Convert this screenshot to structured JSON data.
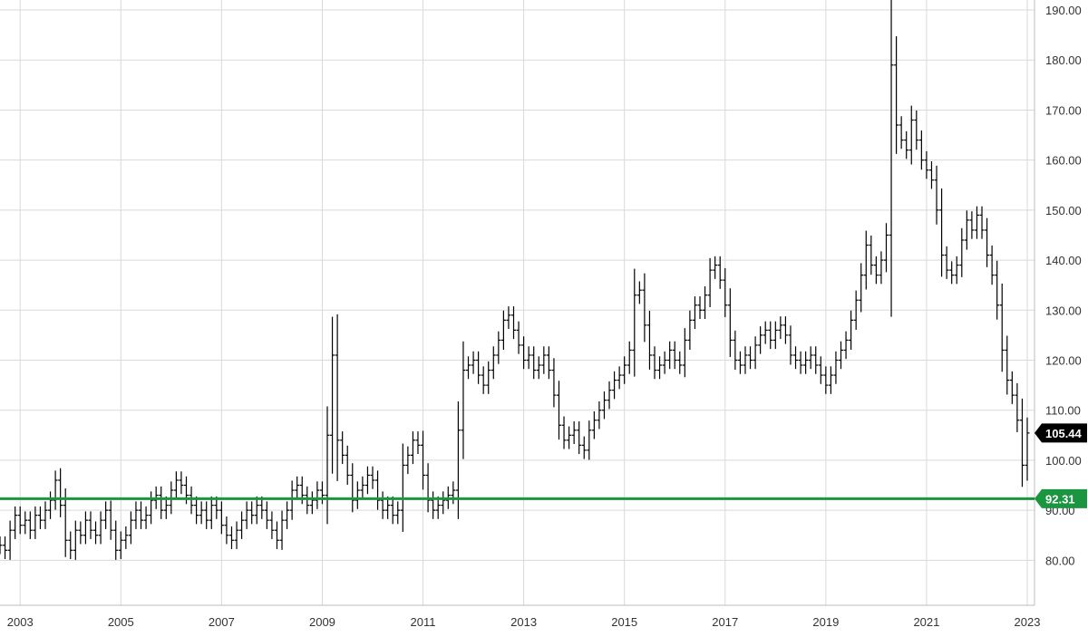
{
  "chart_data": {
    "type": "ohlc",
    "title": "",
    "xlabel": "",
    "ylabel": "",
    "x_ticks": [
      "2003",
      "2005",
      "2007",
      "2009",
      "2011",
      "2013",
      "2015",
      "2017",
      "2019",
      "2021",
      "2023"
    ],
    "y_ticks": [
      "80.00",
      "90.00",
      "100.00",
      "110.00",
      "120.00",
      "130.00",
      "140.00",
      "150.00",
      "160.00",
      "170.00",
      "180.00",
      "190.00"
    ],
    "xlim": [
      2002.6,
      2023.0
    ],
    "ylim": [
      71,
      192
    ],
    "grid": true,
    "legend": "none",
    "bar_color": "#000000",
    "series": [
      {
        "values": [
          [
            2002.6,
            83
          ],
          [
            2002.7,
            82
          ],
          [
            2002.8,
            86
          ],
          [
            2002.9,
            89
          ],
          [
            2003.0,
            87
          ],
          [
            2003.1,
            88
          ],
          [
            2003.2,
            86
          ],
          [
            2003.3,
            89
          ],
          [
            2003.4,
            88
          ],
          [
            2003.5,
            90
          ],
          [
            2003.6,
            92
          ],
          [
            2003.7,
            96
          ],
          [
            2003.8,
            91
          ],
          [
            2003.9,
            84
          ],
          [
            2004.0,
            82
          ],
          [
            2004.1,
            86
          ],
          [
            2004.2,
            85
          ],
          [
            2004.3,
            88
          ],
          [
            2004.4,
            86
          ],
          [
            2004.5,
            85
          ],
          [
            2004.6,
            88
          ],
          [
            2004.7,
            90
          ],
          [
            2004.8,
            86
          ],
          [
            2004.9,
            82
          ],
          [
            2005.0,
            84
          ],
          [
            2005.1,
            85
          ],
          [
            2005.2,
            88
          ],
          [
            2005.3,
            90
          ],
          [
            2005.4,
            88
          ],
          [
            2005.5,
            89
          ],
          [
            2005.6,
            92
          ],
          [
            2005.7,
            93
          ],
          [
            2005.8,
            90
          ],
          [
            2005.9,
            91
          ],
          [
            2006.0,
            94
          ],
          [
            2006.1,
            96
          ],
          [
            2006.2,
            95
          ],
          [
            2006.3,
            93
          ],
          [
            2006.4,
            91
          ],
          [
            2006.5,
            89
          ],
          [
            2006.6,
            90
          ],
          [
            2006.7,
            88
          ],
          [
            2006.8,
            91
          ],
          [
            2006.9,
            90
          ],
          [
            2007.0,
            87
          ],
          [
            2007.1,
            85
          ],
          [
            2007.2,
            84
          ],
          [
            2007.3,
            86
          ],
          [
            2007.4,
            88
          ],
          [
            2007.5,
            90
          ],
          [
            2007.6,
            89
          ],
          [
            2007.7,
            91
          ],
          [
            2007.8,
            90
          ],
          [
            2007.9,
            88
          ],
          [
            2008.0,
            86
          ],
          [
            2008.1,
            84
          ],
          [
            2008.2,
            88
          ],
          [
            2008.3,
            90
          ],
          [
            2008.4,
            94
          ],
          [
            2008.5,
            95
          ],
          [
            2008.6,
            93
          ],
          [
            2008.7,
            91
          ],
          [
            2008.8,
            92
          ],
          [
            2008.9,
            94
          ],
          [
            2009.0,
            93
          ],
          [
            2009.1,
            105
          ],
          [
            2009.2,
            121
          ],
          [
            2009.3,
            104
          ],
          [
            2009.4,
            101
          ],
          [
            2009.5,
            97
          ],
          [
            2009.6,
            92
          ],
          [
            2009.7,
            94
          ],
          [
            2009.8,
            95
          ],
          [
            2009.9,
            97
          ],
          [
            2010.0,
            96
          ],
          [
            2010.1,
            92
          ],
          [
            2010.2,
            90
          ],
          [
            2010.3,
            91
          ],
          [
            2010.4,
            89
          ],
          [
            2010.5,
            90
          ],
          [
            2010.6,
            99
          ],
          [
            2010.7,
            101
          ],
          [
            2010.8,
            104
          ],
          [
            2010.9,
            103
          ],
          [
            2011.0,
            97
          ],
          [
            2011.1,
            92
          ],
          [
            2011.2,
            90
          ],
          [
            2011.3,
            91
          ],
          [
            2011.4,
            92
          ],
          [
            2011.5,
            93
          ],
          [
            2011.6,
            94
          ],
          [
            2011.7,
            106
          ],
          [
            2011.8,
            118
          ],
          [
            2011.9,
            119
          ],
          [
            2012.0,
            120
          ],
          [
            2012.1,
            117
          ],
          [
            2012.2,
            115
          ],
          [
            2012.3,
            118
          ],
          [
            2012.4,
            121
          ],
          [
            2012.5,
            124
          ],
          [
            2012.6,
            128
          ],
          [
            2012.7,
            129
          ],
          [
            2012.8,
            126
          ],
          [
            2012.9,
            123
          ],
          [
            2013.0,
            120
          ],
          [
            2013.1,
            121
          ],
          [
            2013.2,
            118
          ],
          [
            2013.3,
            119
          ],
          [
            2013.4,
            121
          ],
          [
            2013.5,
            118
          ],
          [
            2013.6,
            113
          ],
          [
            2013.7,
            107
          ],
          [
            2013.8,
            104
          ],
          [
            2013.9,
            105
          ],
          [
            2014.0,
            106
          ],
          [
            2014.1,
            103
          ],
          [
            2014.2,
            102
          ],
          [
            2014.3,
            106
          ],
          [
            2014.4,
            108
          ],
          [
            2014.5,
            110
          ],
          [
            2014.6,
            112
          ],
          [
            2014.7,
            114
          ],
          [
            2014.8,
            116
          ],
          [
            2014.9,
            117
          ],
          [
            2015.0,
            119
          ],
          [
            2015.1,
            122
          ],
          [
            2015.2,
            133
          ],
          [
            2015.3,
            134
          ],
          [
            2015.4,
            127
          ],
          [
            2015.5,
            121
          ],
          [
            2015.6,
            118
          ],
          [
            2015.7,
            119
          ],
          [
            2015.8,
            120
          ],
          [
            2015.9,
            122
          ],
          [
            2016.0,
            120
          ],
          [
            2016.1,
            119
          ],
          [
            2016.2,
            124
          ],
          [
            2016.3,
            128
          ],
          [
            2016.4,
            131
          ],
          [
            2016.5,
            130
          ],
          [
            2016.6,
            133
          ],
          [
            2016.7,
            138
          ],
          [
            2016.8,
            139
          ],
          [
            2016.9,
            136
          ],
          [
            2017.0,
            131
          ],
          [
            2017.1,
            124
          ],
          [
            2017.2,
            120
          ],
          [
            2017.3,
            119
          ],
          [
            2017.4,
            121
          ],
          [
            2017.5,
            120
          ],
          [
            2017.6,
            123
          ],
          [
            2017.7,
            125
          ],
          [
            2017.8,
            126
          ],
          [
            2017.9,
            124
          ],
          [
            2018.0,
            126
          ],
          [
            2018.1,
            127
          ],
          [
            2018.2,
            125
          ],
          [
            2018.3,
            121
          ],
          [
            2018.4,
            120
          ],
          [
            2018.5,
            119
          ],
          [
            2018.6,
            120
          ],
          [
            2018.7,
            121
          ],
          [
            2018.8,
            119
          ],
          [
            2018.9,
            117
          ],
          [
            2019.0,
            115
          ],
          [
            2019.1,
            117
          ],
          [
            2019.2,
            120
          ],
          [
            2019.3,
            122
          ],
          [
            2019.4,
            124
          ],
          [
            2019.5,
            128
          ],
          [
            2019.6,
            132
          ],
          [
            2019.7,
            137
          ],
          [
            2019.8,
            143
          ],
          [
            2019.9,
            139
          ],
          [
            2020.0,
            137
          ],
          [
            2020.1,
            140
          ],
          [
            2020.2,
            145
          ],
          [
            2020.3,
            179
          ],
          [
            2020.4,
            167
          ],
          [
            2020.5,
            164
          ],
          [
            2020.6,
            162
          ],
          [
            2020.7,
            168
          ],
          [
            2020.8,
            164
          ],
          [
            2020.9,
            160
          ],
          [
            2021.0,
            158
          ],
          [
            2021.1,
            156
          ],
          [
            2021.2,
            150
          ],
          [
            2021.3,
            141
          ],
          [
            2021.4,
            138
          ],
          [
            2021.5,
            137
          ],
          [
            2021.6,
            139
          ],
          [
            2021.7,
            144
          ],
          [
            2021.8,
            148
          ],
          [
            2021.9,
            146
          ],
          [
            2022.0,
            149
          ],
          [
            2022.1,
            146
          ],
          [
            2022.2,
            141
          ],
          [
            2022.3,
            137
          ],
          [
            2022.4,
            131
          ],
          [
            2022.5,
            122
          ],
          [
            2022.6,
            116
          ],
          [
            2022.7,
            113
          ],
          [
            2022.8,
            108
          ],
          [
            2022.9,
            99
          ],
          [
            2023.0,
            105.44
          ]
        ]
      }
    ]
  },
  "markers": {
    "last_price": {
      "label": "105.44",
      "value": 105.44,
      "color": "#000000"
    },
    "support_line": {
      "label": "92.31",
      "value": 92.31,
      "color": "#1a9641"
    }
  }
}
